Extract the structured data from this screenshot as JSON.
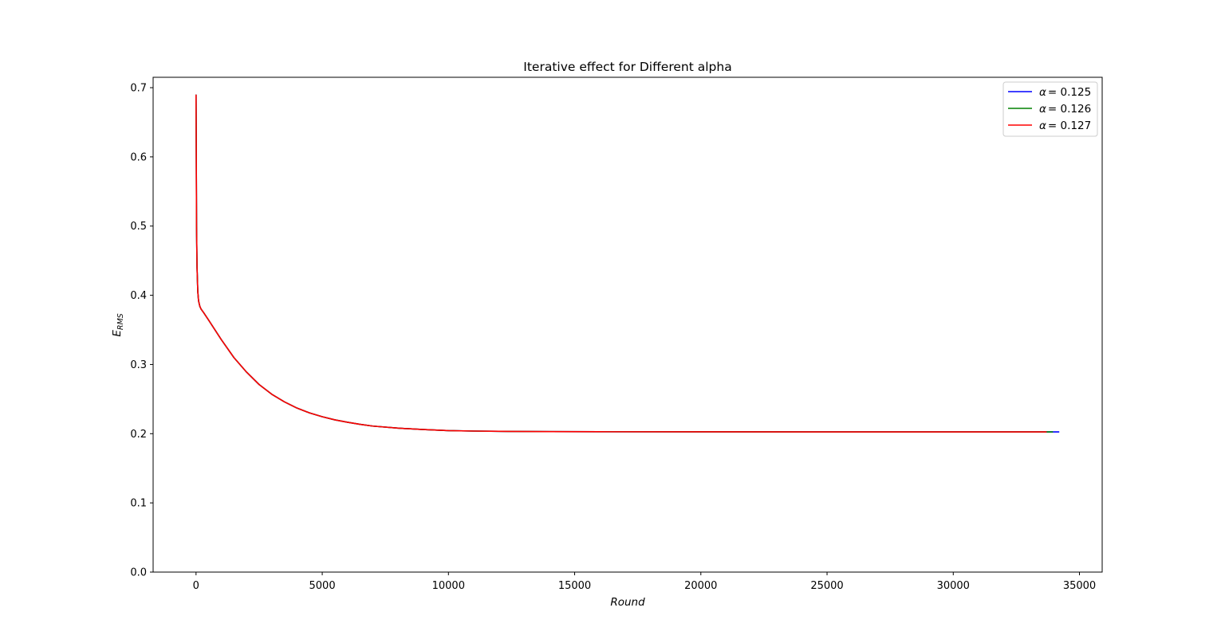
{
  "chart_data": {
    "type": "line",
    "title": "Iterative effect for Different alpha",
    "xlabel": "Round",
    "ylabel_main": "E",
    "ylabel_sub": "RMS",
    "xlim": [
      -1700,
      35900
    ],
    "ylim": [
      0.0,
      0.715
    ],
    "xticks": [
      0,
      5000,
      10000,
      15000,
      20000,
      25000,
      30000,
      35000
    ],
    "yticks": [
      0.0,
      0.1,
      0.2,
      0.3,
      0.4,
      0.5,
      0.6,
      0.7
    ],
    "ytick_labels": [
      "0.0",
      "0.1",
      "0.2",
      "0.3",
      "0.4",
      "0.5",
      "0.6",
      "0.7"
    ],
    "grid": false,
    "legend_position": "top-right",
    "series": [
      {
        "name": "α = 0.125",
        "legend_symbol": "α",
        "legend_value": "= 0.125",
        "color": "#0000ff",
        "x": [
          0,
          10,
          20,
          40,
          70,
          100,
          150,
          200,
          300,
          500,
          1000,
          1500,
          2000,
          2500,
          3000,
          3500,
          4000,
          4500,
          5000,
          5500,
          6000,
          6500,
          7000,
          8000,
          9000,
          10000,
          11000,
          12000,
          14000,
          16000,
          20000,
          25000,
          30000,
          34200
        ],
        "y": [
          0.69,
          0.6,
          0.5,
          0.44,
          0.405,
          0.392,
          0.384,
          0.38,
          0.375,
          0.364,
          0.336,
          0.31,
          0.289,
          0.271,
          0.257,
          0.246,
          0.237,
          0.23,
          0.2245,
          0.22,
          0.2165,
          0.2135,
          0.211,
          0.208,
          0.206,
          0.2045,
          0.2038,
          0.2034,
          0.203,
          0.2028,
          0.2027,
          0.2026,
          0.2026,
          0.2026
        ]
      },
      {
        "name": "α = 0.126",
        "legend_symbol": "α",
        "legend_value": "= 0.126",
        "color": "#008000",
        "x": [
          0,
          10,
          20,
          40,
          70,
          100,
          150,
          200,
          300,
          500,
          1000,
          1500,
          2000,
          2500,
          3000,
          3500,
          4000,
          4500,
          5000,
          5500,
          6000,
          6500,
          7000,
          8000,
          9000,
          10000,
          11000,
          12000,
          14000,
          16000,
          20000,
          25000,
          30000,
          33950
        ],
        "y": [
          0.69,
          0.6,
          0.5,
          0.44,
          0.405,
          0.392,
          0.384,
          0.38,
          0.375,
          0.364,
          0.336,
          0.31,
          0.289,
          0.271,
          0.257,
          0.246,
          0.237,
          0.23,
          0.2245,
          0.22,
          0.2165,
          0.2135,
          0.211,
          0.208,
          0.206,
          0.2045,
          0.2038,
          0.2034,
          0.203,
          0.2028,
          0.2027,
          0.2026,
          0.2026,
          0.2026
        ]
      },
      {
        "name": "α = 0.127",
        "legend_symbol": "α",
        "legend_value": "= 0.127",
        "color": "#ff0000",
        "x": [
          0,
          10,
          20,
          40,
          70,
          100,
          150,
          200,
          300,
          500,
          1000,
          1500,
          2000,
          2500,
          3000,
          3500,
          4000,
          4500,
          5000,
          5500,
          6000,
          6500,
          7000,
          8000,
          9000,
          10000,
          11000,
          12000,
          14000,
          16000,
          20000,
          25000,
          30000,
          33700
        ],
        "y": [
          0.69,
          0.6,
          0.5,
          0.44,
          0.405,
          0.392,
          0.384,
          0.38,
          0.375,
          0.364,
          0.336,
          0.31,
          0.289,
          0.271,
          0.257,
          0.246,
          0.237,
          0.23,
          0.2245,
          0.22,
          0.2165,
          0.2135,
          0.211,
          0.208,
          0.206,
          0.2045,
          0.2038,
          0.2034,
          0.203,
          0.2028,
          0.2027,
          0.2026,
          0.2026,
          0.2026
        ]
      }
    ]
  }
}
